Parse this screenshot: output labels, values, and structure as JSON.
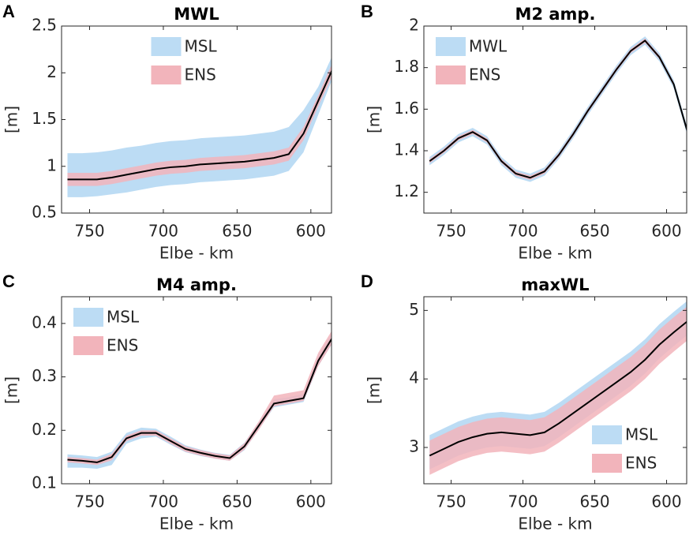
{
  "chart_data": [
    {
      "type": "band",
      "label": "A",
      "title": "MWL",
      "xlabel": "Elbe - km",
      "ylabel": "[m]",
      "legend_loc": "north",
      "xlim": [
        769,
        586
      ],
      "xticks": [
        750,
        700,
        650,
        600
      ],
      "ylim": [
        0.5,
        2.5
      ],
      "yticks": [
        0.5,
        1,
        1.5,
        2,
        2.5
      ],
      "x": [
        765,
        755,
        745,
        735,
        725,
        715,
        705,
        695,
        685,
        675,
        665,
        655,
        645,
        635,
        625,
        615,
        605,
        595,
        585
      ],
      "series": [
        {
          "name": "MSL",
          "color": "#bcdcf4",
          "high": [
            1.14,
            1.14,
            1.15,
            1.17,
            1.2,
            1.22,
            1.25,
            1.27,
            1.28,
            1.3,
            1.31,
            1.32,
            1.33,
            1.35,
            1.37,
            1.42,
            1.6,
            1.85,
            2.2
          ],
          "low": [
            0.67,
            0.67,
            0.68,
            0.7,
            0.72,
            0.75,
            0.78,
            0.8,
            0.81,
            0.83,
            0.84,
            0.85,
            0.86,
            0.88,
            0.9,
            0.95,
            1.15,
            1.55,
            1.95
          ]
        },
        {
          "name": "ENS",
          "color": "#f2b4bb",
          "high": [
            0.93,
            0.93,
            0.93,
            0.95,
            0.98,
            1.01,
            1.04,
            1.06,
            1.07,
            1.09,
            1.1,
            1.11,
            1.12,
            1.14,
            1.16,
            1.2,
            1.42,
            1.76,
            2.12
          ],
          "low": [
            0.79,
            0.79,
            0.79,
            0.81,
            0.84,
            0.87,
            0.9,
            0.92,
            0.93,
            0.95,
            0.96,
            0.97,
            0.98,
            1.0,
            1.02,
            1.06,
            1.28,
            1.64,
            1.98
          ]
        }
      ],
      "line": {
        "color": "#000000",
        "values": [
          0.86,
          0.86,
          0.86,
          0.88,
          0.91,
          0.94,
          0.97,
          0.99,
          1.0,
          1.02,
          1.03,
          1.04,
          1.05,
          1.07,
          1.09,
          1.13,
          1.35,
          1.7,
          2.05
        ]
      }
    },
    {
      "type": "band",
      "label": "B",
      "title": "M2 amp.",
      "xlabel": "Elbe - km",
      "ylabel": "[m]",
      "legend_loc": "northwest",
      "xlim": [
        769,
        586
      ],
      "xticks": [
        750,
        700,
        650,
        600
      ],
      "ylim": [
        1.1,
        2.0
      ],
      "yticks": [
        1.2,
        1.4,
        1.6,
        1.8,
        2
      ],
      "x": [
        765,
        755,
        745,
        735,
        725,
        715,
        705,
        695,
        685,
        675,
        665,
        655,
        645,
        635,
        625,
        615,
        605,
        595,
        585
      ],
      "series": [
        {
          "name": "MWL",
          "color": "#bcdcf4",
          "high": [
            1.37,
            1.42,
            1.48,
            1.51,
            1.47,
            1.37,
            1.31,
            1.29,
            1.32,
            1.4,
            1.5,
            1.61,
            1.71,
            1.81,
            1.9,
            1.95,
            1.87,
            1.74,
            1.5
          ],
          "low": [
            1.33,
            1.38,
            1.44,
            1.47,
            1.43,
            1.33,
            1.27,
            1.25,
            1.28,
            1.36,
            1.46,
            1.57,
            1.67,
            1.77,
            1.86,
            1.91,
            1.83,
            1.7,
            1.46
          ]
        },
        {
          "name": "ENS",
          "color": "#f2b4bb",
          "high": [
            1.36,
            1.41,
            1.47,
            1.5,
            1.46,
            1.36,
            1.3,
            1.28,
            1.31,
            1.39,
            1.49,
            1.6,
            1.7,
            1.8,
            1.89,
            1.94,
            1.86,
            1.73,
            1.49
          ],
          "low": [
            1.34,
            1.39,
            1.45,
            1.48,
            1.44,
            1.34,
            1.28,
            1.26,
            1.29,
            1.37,
            1.47,
            1.58,
            1.68,
            1.78,
            1.87,
            1.92,
            1.84,
            1.71,
            1.47
          ]
        }
      ],
      "line": {
        "color": "#000000",
        "values": [
          1.35,
          1.4,
          1.46,
          1.49,
          1.45,
          1.35,
          1.29,
          1.27,
          1.3,
          1.38,
          1.48,
          1.59,
          1.69,
          1.79,
          1.88,
          1.93,
          1.85,
          1.72,
          1.48
        ]
      }
    },
    {
      "type": "band",
      "label": "C",
      "title": "M4 amp.",
      "xlabel": "Elbe - km",
      "ylabel": "[m]",
      "legend_loc": "northwest",
      "xlim": [
        769,
        586
      ],
      "xticks": [
        750,
        700,
        650,
        600
      ],
      "ylim": [
        0.1,
        0.45
      ],
      "yticks": [
        0.1,
        0.2,
        0.3,
        0.4
      ],
      "x": [
        765,
        755,
        745,
        735,
        725,
        715,
        705,
        695,
        685,
        675,
        665,
        655,
        645,
        635,
        625,
        615,
        605,
        595,
        585
      ],
      "series": [
        {
          "name": "MSL",
          "color": "#bcdcf4",
          "high": [
            0.155,
            0.153,
            0.15,
            0.16,
            0.195,
            0.205,
            0.203,
            0.188,
            0.172,
            0.164,
            0.158,
            0.154,
            0.177,
            0.217,
            0.258,
            0.262,
            0.268,
            0.34,
            0.385
          ],
          "low": [
            0.13,
            0.13,
            0.128,
            0.135,
            0.175,
            0.185,
            0.188,
            0.173,
            0.159,
            0.152,
            0.147,
            0.143,
            0.163,
            0.203,
            0.243,
            0.248,
            0.253,
            0.32,
            0.365
          ]
        },
        {
          "name": "ENS",
          "color": "#f2b4bb",
          "high": [
            0.15,
            0.148,
            0.145,
            0.156,
            0.19,
            0.2,
            0.2,
            0.185,
            0.17,
            0.163,
            0.157,
            0.153,
            0.176,
            0.218,
            0.265,
            0.27,
            0.275,
            0.345,
            0.39
          ],
          "low": [
            0.14,
            0.138,
            0.135,
            0.144,
            0.18,
            0.19,
            0.19,
            0.175,
            0.16,
            0.153,
            0.147,
            0.143,
            0.164,
            0.202,
            0.245,
            0.25,
            0.255,
            0.32,
            0.365
          ]
        }
      ],
      "line": {
        "color": "#000000",
        "values": [
          0.145,
          0.143,
          0.14,
          0.15,
          0.185,
          0.195,
          0.195,
          0.18,
          0.165,
          0.158,
          0.152,
          0.148,
          0.17,
          0.21,
          0.25,
          0.255,
          0.26,
          0.33,
          0.375
        ]
      }
    },
    {
      "type": "band",
      "label": "D",
      "title": "maxWL",
      "xlabel": "Elbe - km",
      "ylabel": "[m]",
      "legend_loc": "southeast",
      "xlim": [
        769,
        586
      ],
      "xticks": [
        750,
        700,
        650,
        600
      ],
      "ylim": [
        2.47,
        5.2
      ],
      "yticks": [
        3,
        4,
        5
      ],
      "x": [
        765,
        755,
        745,
        735,
        725,
        715,
        705,
        695,
        685,
        675,
        665,
        655,
        645,
        635,
        625,
        615,
        605,
        595,
        585
      ],
      "series": [
        {
          "name": "MSL",
          "color": "#bcdcf4",
          "high": [
            3.18,
            3.28,
            3.38,
            3.45,
            3.5,
            3.52,
            3.5,
            3.48,
            3.52,
            3.65,
            3.8,
            3.95,
            4.1,
            4.25,
            4.4,
            4.58,
            4.8,
            4.98,
            5.15
          ],
          "low": [
            2.68,
            2.78,
            2.88,
            2.95,
            3.0,
            3.02,
            3.0,
            2.98,
            3.02,
            3.15,
            3.3,
            3.45,
            3.6,
            3.75,
            3.9,
            4.08,
            4.3,
            4.48,
            4.65
          ]
        },
        {
          "name": "ENS",
          "color": "#f2b4bb",
          "high": [
            3.1,
            3.2,
            3.3,
            3.37,
            3.42,
            3.44,
            3.42,
            3.4,
            3.44,
            3.57,
            3.72,
            3.87,
            4.02,
            4.17,
            4.32,
            4.5,
            4.72,
            4.9,
            5.07
          ],
          "low": [
            2.6,
            2.7,
            2.8,
            2.87,
            2.92,
            2.94,
            2.92,
            2.9,
            2.94,
            3.07,
            3.22,
            3.37,
            3.52,
            3.67,
            3.82,
            4.0,
            4.22,
            4.4,
            4.57
          ]
        }
      ],
      "line": {
        "color": "#000000",
        "values": [
          2.88,
          2.98,
          3.08,
          3.15,
          3.2,
          3.22,
          3.2,
          3.18,
          3.22,
          3.35,
          3.5,
          3.65,
          3.8,
          3.95,
          4.1,
          4.28,
          4.5,
          4.68,
          4.85
        ]
      }
    }
  ]
}
